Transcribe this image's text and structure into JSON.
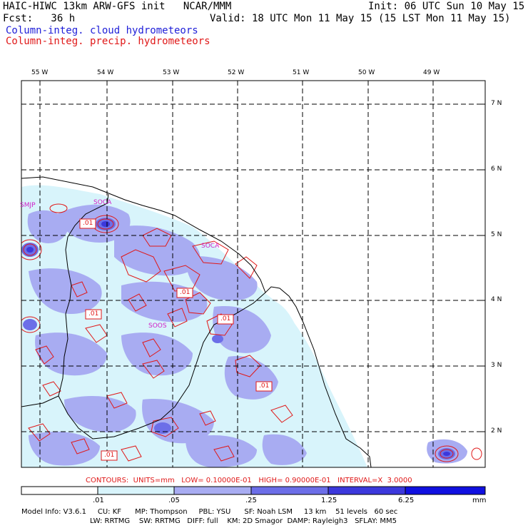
{
  "header": {
    "line1_left": "HAIC-HIWC 13km ARW-GFS init   NCAR/MMM",
    "line1_right": "Init: 06 UTC Sun 10 May 15",
    "line2_left": "Fcst:   36 h",
    "line2_right": "Valid: 18 UTC Mon 11 May 15 (15 LST Mon 11 May 15)",
    "legend_cloud": "Column-integ. cloud hydrometeors",
    "legend_precip": "Column-integ. precip. hydrometeors"
  },
  "colors": {
    "cloud_legend": "#1e1ed8",
    "precip_legend": "#e01818",
    "fill_level1": "#d8f4fb",
    "fill_level2": "#a8acf2",
    "fill_level3": "#6c6ee8",
    "fill_level4": "#3c38dc",
    "fill_level5": "#1010e0"
  },
  "map": {
    "lon_labels": [
      "55 W",
      "54 W",
      "53 W",
      "52 W",
      "51 W",
      "50 W",
      "49 W"
    ],
    "lat_labels": [
      "7 N",
      "6 N",
      "5 N",
      "4 N",
      "3 N",
      "2 N"
    ],
    "stations": [
      "SMJP",
      "SOCA",
      "SOCA",
      "SOOS"
    ],
    "contour_labels": [
      ".01",
      ".01",
      ".01",
      ".01",
      ".01",
      ".01"
    ]
  },
  "contours_text": "CONTOURS:  UNITS=mm   LOW= 0.10000E-01   HIGH= 0.90000E-01   INTERVAL=X  3.0000",
  "colorbar": {
    "labels": [
      ".01",
      ".05",
      ".25",
      "1.25",
      "6.25"
    ],
    "unit": "mm"
  },
  "model_info": {
    "line1": "Model Info: V3.6.1     CU: KF      MP: Thompson     PBL: YSU      SF: Noah LSM     13 km    51 levels   60 sec",
    "line2": "LW: RRTMG    SW: RRTMG   DIFF: full    KM: 2D Smagor  DAMP: Rayleigh3   SFLAY: MM5"
  }
}
